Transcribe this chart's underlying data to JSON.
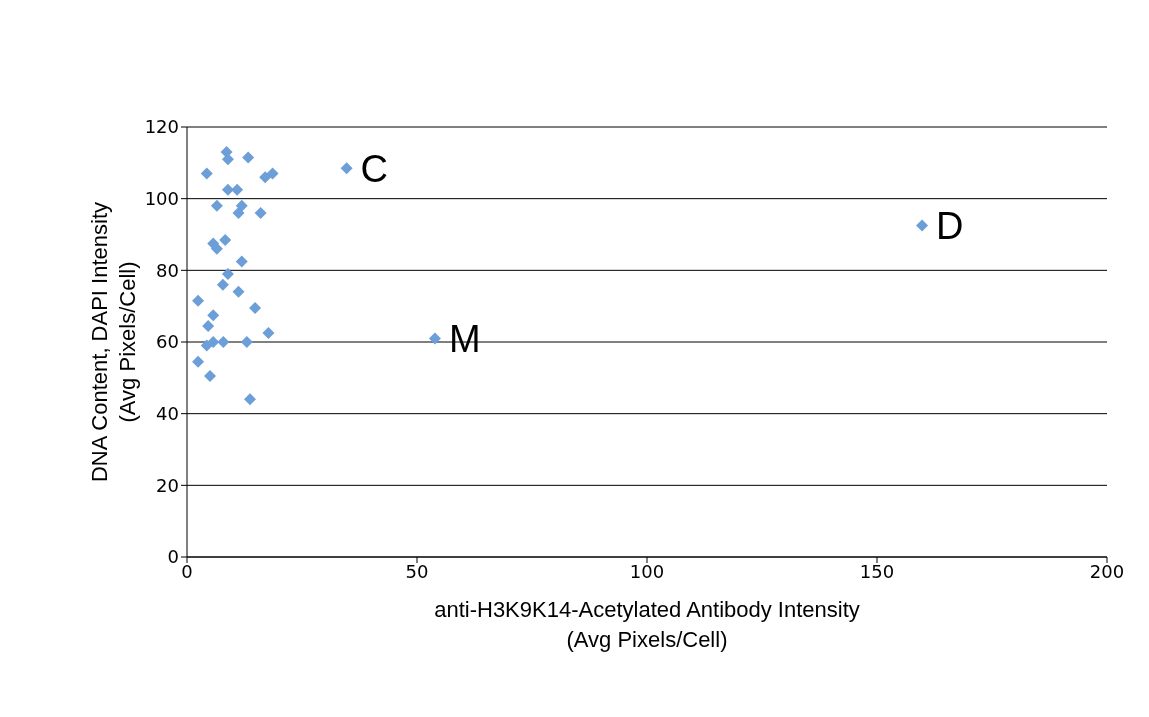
{
  "chart_data": {
    "type": "scatter",
    "xlabel": "anti-H3K9K14-Acetylated Antibody Intensity\n(Avg Pixels/Cell)",
    "ylabel": "DNA Content, DAPI Intensity\n(Avg Pixels/Cell)",
    "x": [
      8.6,
      8.9,
      13.3,
      4.3,
      17,
      18.6,
      8.9,
      10.9,
      6.5,
      11.9,
      11.2,
      16,
      5.7,
      8.3,
      6.5,
      11.9,
      8.9,
      7.8,
      11.2,
      2.4,
      14.8,
      5.7,
      4.6,
      17.7,
      5.7,
      7.9,
      4.3,
      13,
      2.4,
      5,
      13.7,
      34.7,
      53.9,
      159.8
    ],
    "series": [
      {
        "color": "#6c9fd8",
        "values": [
          113,
          111,
          111.5,
          107,
          106,
          107,
          102.5,
          102.5,
          98,
          98,
          96,
          96,
          87.5,
          88.5,
          86,
          82.5,
          79,
          76,
          74,
          71.5,
          69.5,
          67.5,
          64.5,
          62.5,
          60,
          60,
          59,
          60,
          54.5,
          50.5,
          44,
          108.5,
          61,
          92.5
        ]
      }
    ],
    "xlim": [
      0,
      200
    ],
    "xticks": [
      0,
      50,
      100,
      150,
      200
    ],
    "ylim": [
      0,
      120
    ],
    "yticks": [
      0,
      20,
      40,
      60,
      80,
      100,
      120
    ],
    "grid": "y",
    "legend": false,
    "marker": "diamond",
    "annotations": [
      {
        "text": "C",
        "x": 34.7,
        "y": 108.5
      },
      {
        "text": "M",
        "x": 53.9,
        "y": 61
      },
      {
        "text": "D",
        "x": 159.8,
        "y": 92.5
      }
    ]
  }
}
